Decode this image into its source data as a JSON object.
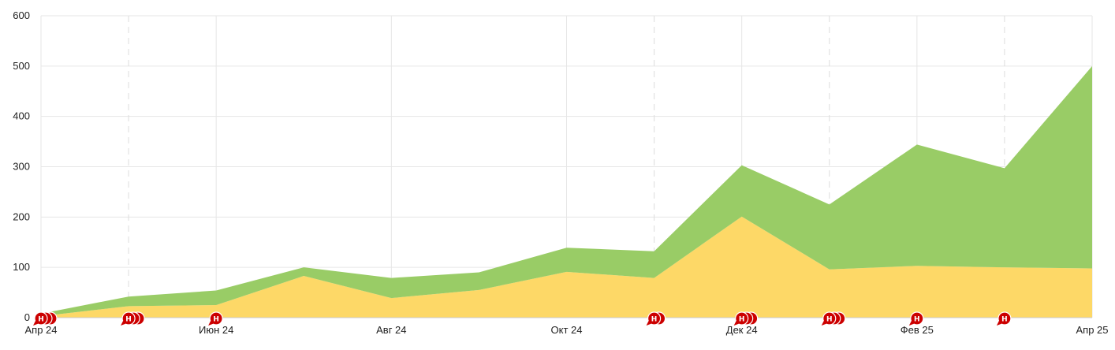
{
  "chart_data": {
    "type": "area",
    "stacked": true,
    "x": [
      "2024-04",
      "2024-05",
      "2024-06",
      "2024-07",
      "2024-08",
      "2024-09",
      "2024-10",
      "2024-11",
      "2024-12",
      "2025-01",
      "2025-02",
      "2025-03",
      "2025-04"
    ],
    "x_tick_labels": [
      {
        "at": "2024-04",
        "label": "Апр 24"
      },
      {
        "at": "2024-06",
        "label": "Июн 24"
      },
      {
        "at": "2024-08",
        "label": "Авг 24"
      },
      {
        "at": "2024-10",
        "label": "Окт 24"
      },
      {
        "at": "2024-12",
        "label": "Дек 24"
      },
      {
        "at": "2025-02",
        "label": "Фев 25"
      },
      {
        "at": "2025-04",
        "label": "Апр 25"
      }
    ],
    "ylim": [
      0,
      600
    ],
    "y_ticks": [
      0,
      100,
      200,
      300,
      400,
      500,
      600
    ],
    "grid": true,
    "series": [
      {
        "color": "#fdd867",
        "values": [
          3,
          23,
          25,
          83,
          39,
          55,
          91,
          79,
          201,
          96,
          103,
          100,
          98
        ]
      },
      {
        "color": "#99cc66",
        "values": [
          5,
          19,
          29,
          17,
          40,
          35,
          48,
          53,
          102,
          129,
          241,
          197,
          402
        ]
      }
    ],
    "markers": [
      {
        "at": "2024-04",
        "label": "Н",
        "count": 3
      },
      {
        "at": "2024-05",
        "label": "Н",
        "count": 3
      },
      {
        "at": "2024-06",
        "label": "Н",
        "count": 1
      },
      {
        "at": "2024-11",
        "label": "Н",
        "count": 2
      },
      {
        "at": "2024-12",
        "label": "Н",
        "count": 3
      },
      {
        "at": "2025-01",
        "label": "Н",
        "count": 3
      },
      {
        "at": "2025-02",
        "label": "Н",
        "count": 1
      },
      {
        "at": "2025-03",
        "label": "Н",
        "count": 1
      }
    ],
    "marker_color": "#cc0000"
  }
}
